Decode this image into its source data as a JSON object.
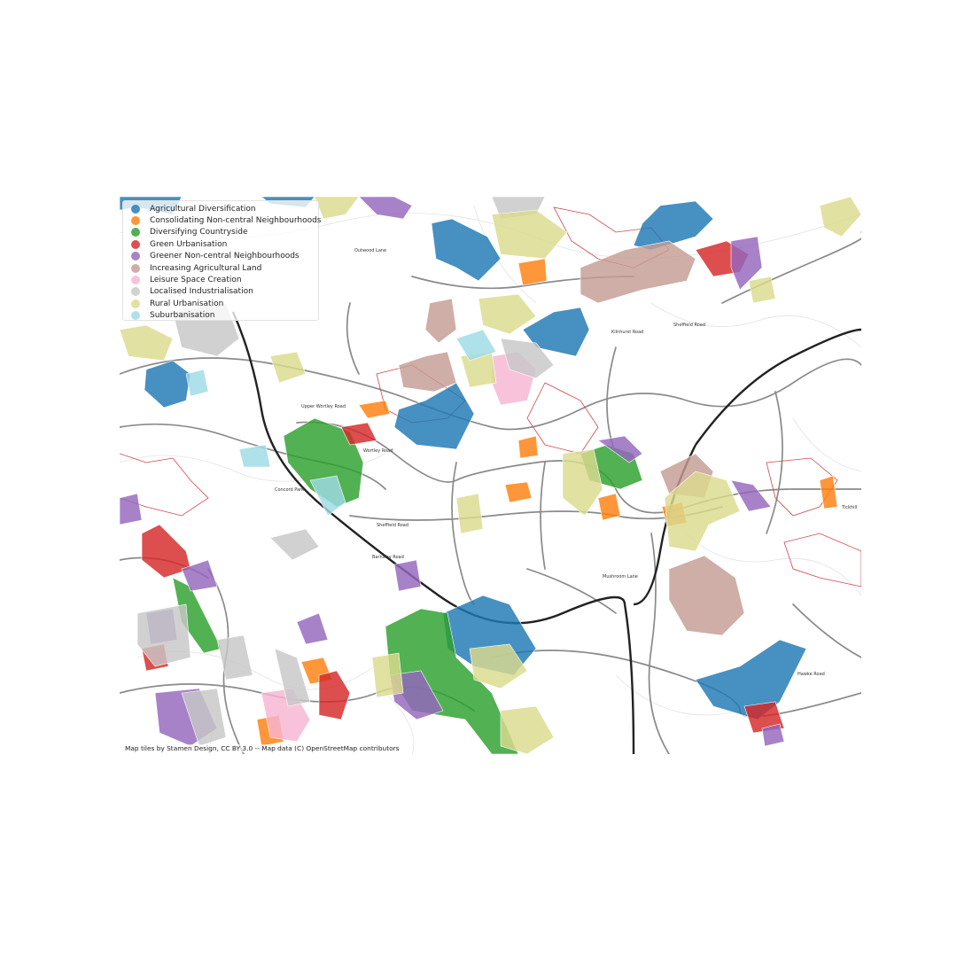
{
  "legend": {
    "items": [
      {
        "label": "Agricultural Diversification",
        "color": "#1f77b4"
      },
      {
        "label": "Consolidating Non-central Neighbourhoods",
        "color": "#ff7f0e"
      },
      {
        "label": "Diversifying Countryside",
        "color": "#2ca02c"
      },
      {
        "label": "Green Urbanisation",
        "color": "#d62728"
      },
      {
        "label": "Greener Non-central Neighbourhoods",
        "color": "#9467bd"
      },
      {
        "label": "Increasing Agricultural Land",
        "color": "#c49c94"
      },
      {
        "label": "Leisure Space Creation",
        "color": "#f7b6d2"
      },
      {
        "label": "Localised Industrialisation",
        "color": "#c7c7c7"
      },
      {
        "label": "Rural Urbanisation",
        "color": "#dbdb8d"
      },
      {
        "label": "Suburbanisation",
        "color": "#9edae5"
      }
    ]
  },
  "attribution": "Map tiles by Stamen Design, CC BY 3.0 -- Map data (C) OpenStreetMap contributors",
  "road_labels": [
    "Sheffield Road",
    "Sheffield Road",
    "Wortley Road",
    "Upper Wortley Road",
    "Concord Park",
    "Barnsley Road",
    "Kilnhurst Road",
    "Tickhill",
    "Hawke Road",
    "Outwood Lane",
    "Mushroom Lane"
  ],
  "map": {
    "district_outline_color": "#d0454c",
    "road_color": "#8a8a8a",
    "motorway_color": "#222222"
  }
}
